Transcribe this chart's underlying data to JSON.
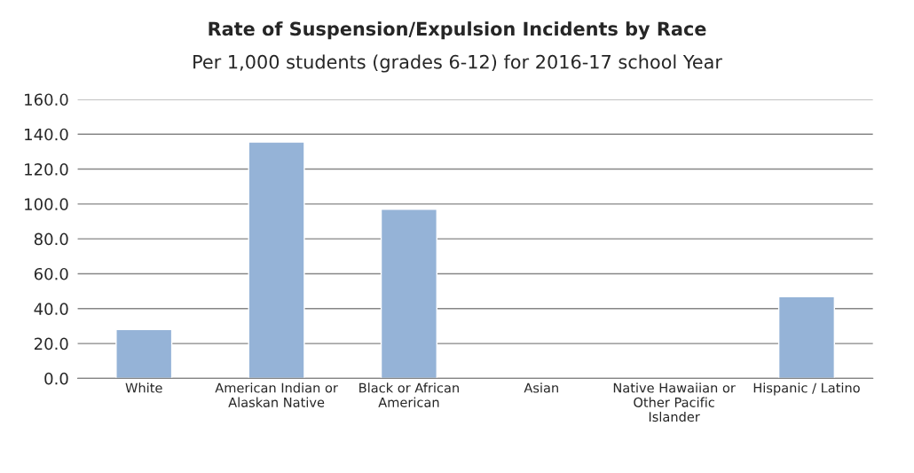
{
  "chart_data": {
    "type": "bar",
    "title": "Rate of Suspension/Expulsion Incidents by Race",
    "subtitle": "Per 1,000 students (grades 6-12) for 2016-17 school Year",
    "categories": [
      "White",
      "American Indian or Alaskan Native",
      "Black or African American",
      "Asian",
      "Native Hawaiian or Other Pacific Islander",
      "Hispanic / Latino"
    ],
    "values": [
      28,
      135.5,
      97,
      null,
      null,
      46.8
    ],
    "color": "#95b3d7",
    "ylim": [
      0,
      160
    ],
    "yticks": [
      {
        "value": 0,
        "label": "0.0"
      },
      {
        "value": 20,
        "label": "20.0"
      },
      {
        "value": 40,
        "label": "40.0"
      },
      {
        "value": 60,
        "label": "60.0"
      },
      {
        "value": 80,
        "label": "80.0"
      },
      {
        "value": 100,
        "label": "100.0"
      },
      {
        "value": 120,
        "label": "120.0"
      },
      {
        "value": 140,
        "label": "140.0"
      },
      {
        "value": 160,
        "label": "160.0"
      }
    ],
    "grid": "y"
  }
}
